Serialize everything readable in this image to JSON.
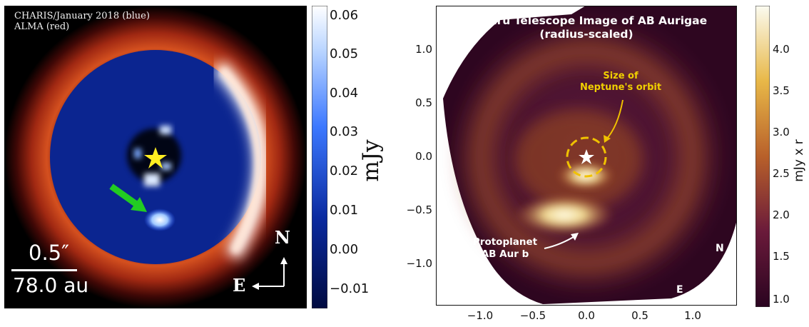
{
  "left_panel": {
    "legend_blue": "CHARIS/January 2018 (blue)",
    "legend_red": "ALMA (red)",
    "scale_arcsec": "0.5″",
    "scale_au": "78.0 au",
    "compass_north": "N",
    "compass_east": "E",
    "colorbar": {
      "label": "mJy",
      "ticks": [
        "0.06",
        "0.05",
        "0.04",
        "0.03",
        "0.02",
        "0.01",
        "0.00",
        "−0.01"
      ]
    }
  },
  "right_panel": {
    "title_line1": "Subaru Telescope Image of AB Aurigae",
    "title_line2": "(radius-scaled)",
    "annotation_neptune_line1": "Size of",
    "annotation_neptune_line2": "Neptune's orbit",
    "annotation_protoplanet_line1": "Protoplanet",
    "annotation_protoplanet_line2": "AB Aur b",
    "compass_north": "N",
    "compass_east": "E",
    "y_ticks": [
      "1.0",
      "0.5",
      "0.0",
      "−0.5",
      "−1.0"
    ],
    "x_ticks": [
      "−1.0",
      "−0.5",
      "0.0",
      "0.5",
      "1.0"
    ],
    "colorbar": {
      "label": "mJy x r",
      "ticks": [
        "4.0",
        "3.5",
        "3.0",
        "2.5",
        "2.0",
        "1.5",
        "1.0"
      ]
    }
  },
  "colors": {
    "left_disk_red": "#e8582a",
    "left_inner_blue": "#0d2a9a",
    "right_background": "#3a0b2c",
    "right_glow": "#f5f0d2",
    "neptune_circle": "#f0c200"
  }
}
